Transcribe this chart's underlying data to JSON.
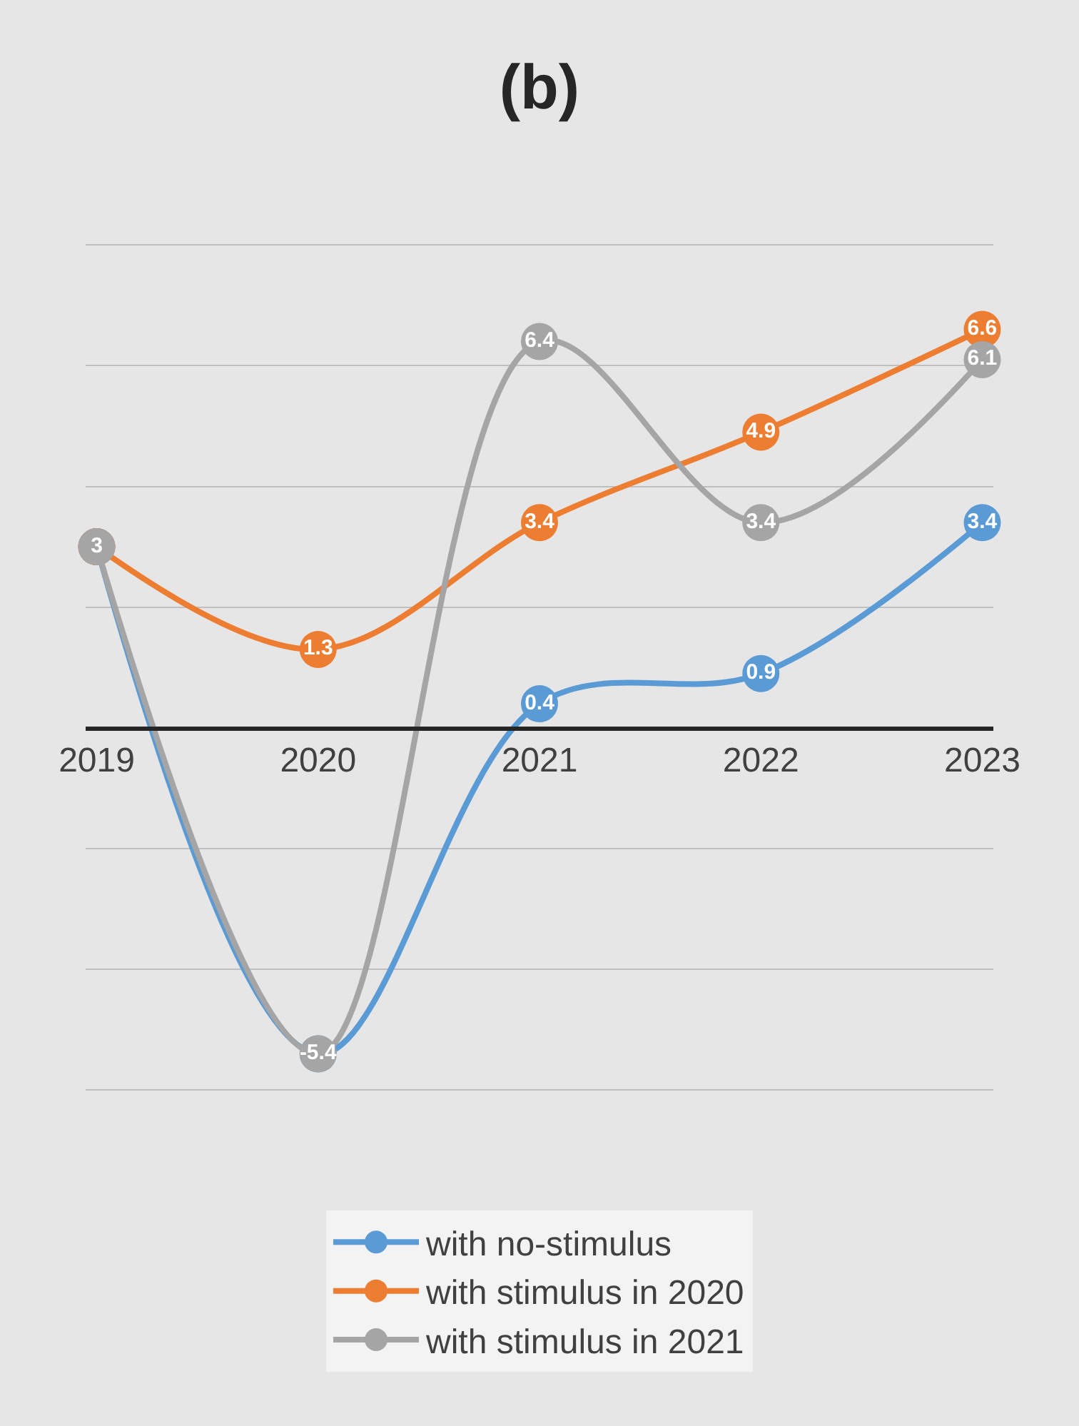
{
  "chart_data": {
    "type": "line",
    "title": "(b)",
    "categories": [
      "2019",
      "2020",
      "2021",
      "2022",
      "2023"
    ],
    "series": [
      {
        "name": "with no-stimulus",
        "color": "#5b9bd5",
        "values": [
          3,
          -5.4,
          0.4,
          0.9,
          3.4
        ],
        "value_labels": [
          null,
          null,
          "0.4",
          "0.9",
          "3.4"
        ]
      },
      {
        "name": "with stimulus in 2020",
        "color": "#ed7d31",
        "values": [
          3,
          1.3,
          3.4,
          4.9,
          6.6
        ],
        "value_labels": [
          null,
          "1.3",
          "3.4",
          "4.9",
          "6.6"
        ]
      },
      {
        "name": "with stimulus in 2021",
        "color": "#a5a5a5",
        "values": [
          3,
          -5.4,
          6.4,
          3.4,
          6.1
        ],
        "value_labels": [
          "3",
          "-5.4",
          "6.4",
          "3.4",
          "6.1"
        ]
      }
    ],
    "tick_labels": "x",
    "grid": "y",
    "legend": "bottom",
    "marker": "circle",
    "line_style": "solid"
  }
}
